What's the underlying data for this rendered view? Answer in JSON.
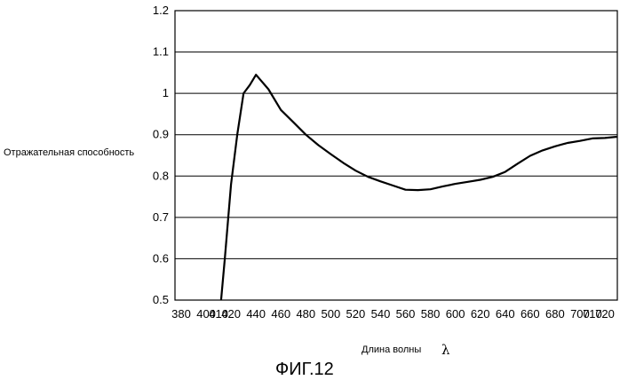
{
  "chart_data": {
    "type": "line",
    "ylabel": "Отражательная способность",
    "xlabel": "Длина волны",
    "xlabel_symbol": "λ",
    "caption": "ФИГ.12",
    "xlim": [
      375,
      730
    ],
    "ylim": [
      0.5,
      1.2
    ],
    "x_ticks": [
      380,
      400,
      420,
      440,
      460,
      480,
      500,
      520,
      540,
      560,
      580,
      600,
      620,
      640,
      660,
      680,
      700,
      720
    ],
    "x_tick_labels": [
      "380",
      "400",
      "420",
      "440",
      "460",
      "480",
      "500",
      "520",
      "540",
      "560",
      "580",
      "600",
      "620",
      "640",
      "660",
      "680",
      "700",
      "720"
    ],
    "extra_x_tick_labels": [
      {
        "x": 410,
        "label": "410"
      },
      {
        "x": 710,
        "label": "710"
      }
    ],
    "y_ticks": [
      0.5,
      0.6,
      0.7,
      0.8,
      0.9,
      1.0,
      1.1,
      1.2
    ],
    "y_tick_labels": [
      "0.5",
      "0.6",
      "0.7",
      "0.8",
      "0.9",
      "1",
      "1.1",
      "1.2"
    ],
    "grid": {
      "horizontal": true,
      "vertical": false
    },
    "series": [
      {
        "x": [
          412,
          415,
          420,
          425,
          430,
          435,
          440,
          450,
          460,
          470,
          480,
          490,
          500,
          510,
          520,
          530,
          540,
          550,
          560,
          570,
          580,
          590,
          600,
          610,
          620,
          630,
          640,
          650,
          660,
          670,
          680,
          690,
          700,
          710,
          720,
          730
        ],
        "y": [
          0.5,
          0.6,
          0.78,
          0.9,
          1.0,
          1.02,
          1.045,
          1.01,
          0.96,
          0.93,
          0.9,
          0.875,
          0.853,
          0.832,
          0.813,
          0.798,
          0.787,
          0.777,
          0.767,
          0.766,
          0.768,
          0.775,
          0.781,
          0.786,
          0.791,
          0.798,
          0.81,
          0.83,
          0.849,
          0.862,
          0.872,
          0.88,
          0.885,
          0.891,
          0.892,
          0.895
        ],
        "color": "#000000"
      }
    ]
  }
}
